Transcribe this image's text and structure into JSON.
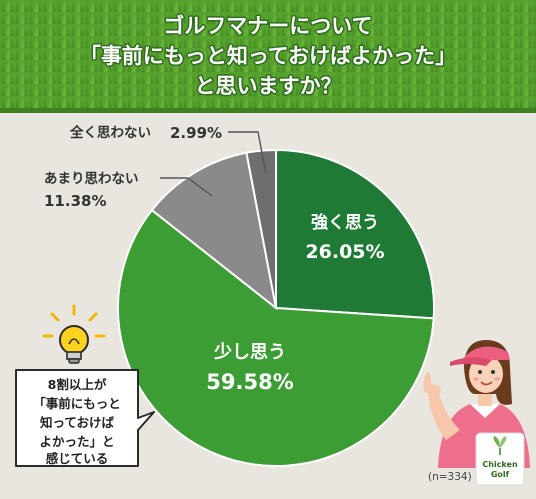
{
  "header": {
    "title_lines": [
      "ゴルフマナーについて",
      "「事前にもっと知っておけばよかった」",
      "と思いますか？"
    ]
  },
  "chart_data": {
    "type": "pie",
    "categories": [
      "強く思う",
      "少し思う",
      "あまり思わない",
      "全く思わない"
    ],
    "values": [
      26.05,
      59.58,
      11.38,
      2.99
    ],
    "value_labels": [
      "26.05%",
      "59.58%",
      "11.38%",
      "2.99%"
    ],
    "colors": [
      "#1f7a35",
      "#3d9d35",
      "#8a8a8a",
      "#6e6e6e"
    ],
    "sample_note": "(n=334)"
  },
  "callout": {
    "lines": [
      "8割以上が",
      "「事前にもっと",
      "知っておけば",
      "よかった」と",
      "感じている"
    ],
    "icon": "lightbulb-icon"
  },
  "logo": {
    "line1": "Chicken",
    "line2": "Golf",
    "icon": "leaf-icon"
  },
  "illustration": {
    "icon": "golfer-woman-pointing-icon"
  }
}
